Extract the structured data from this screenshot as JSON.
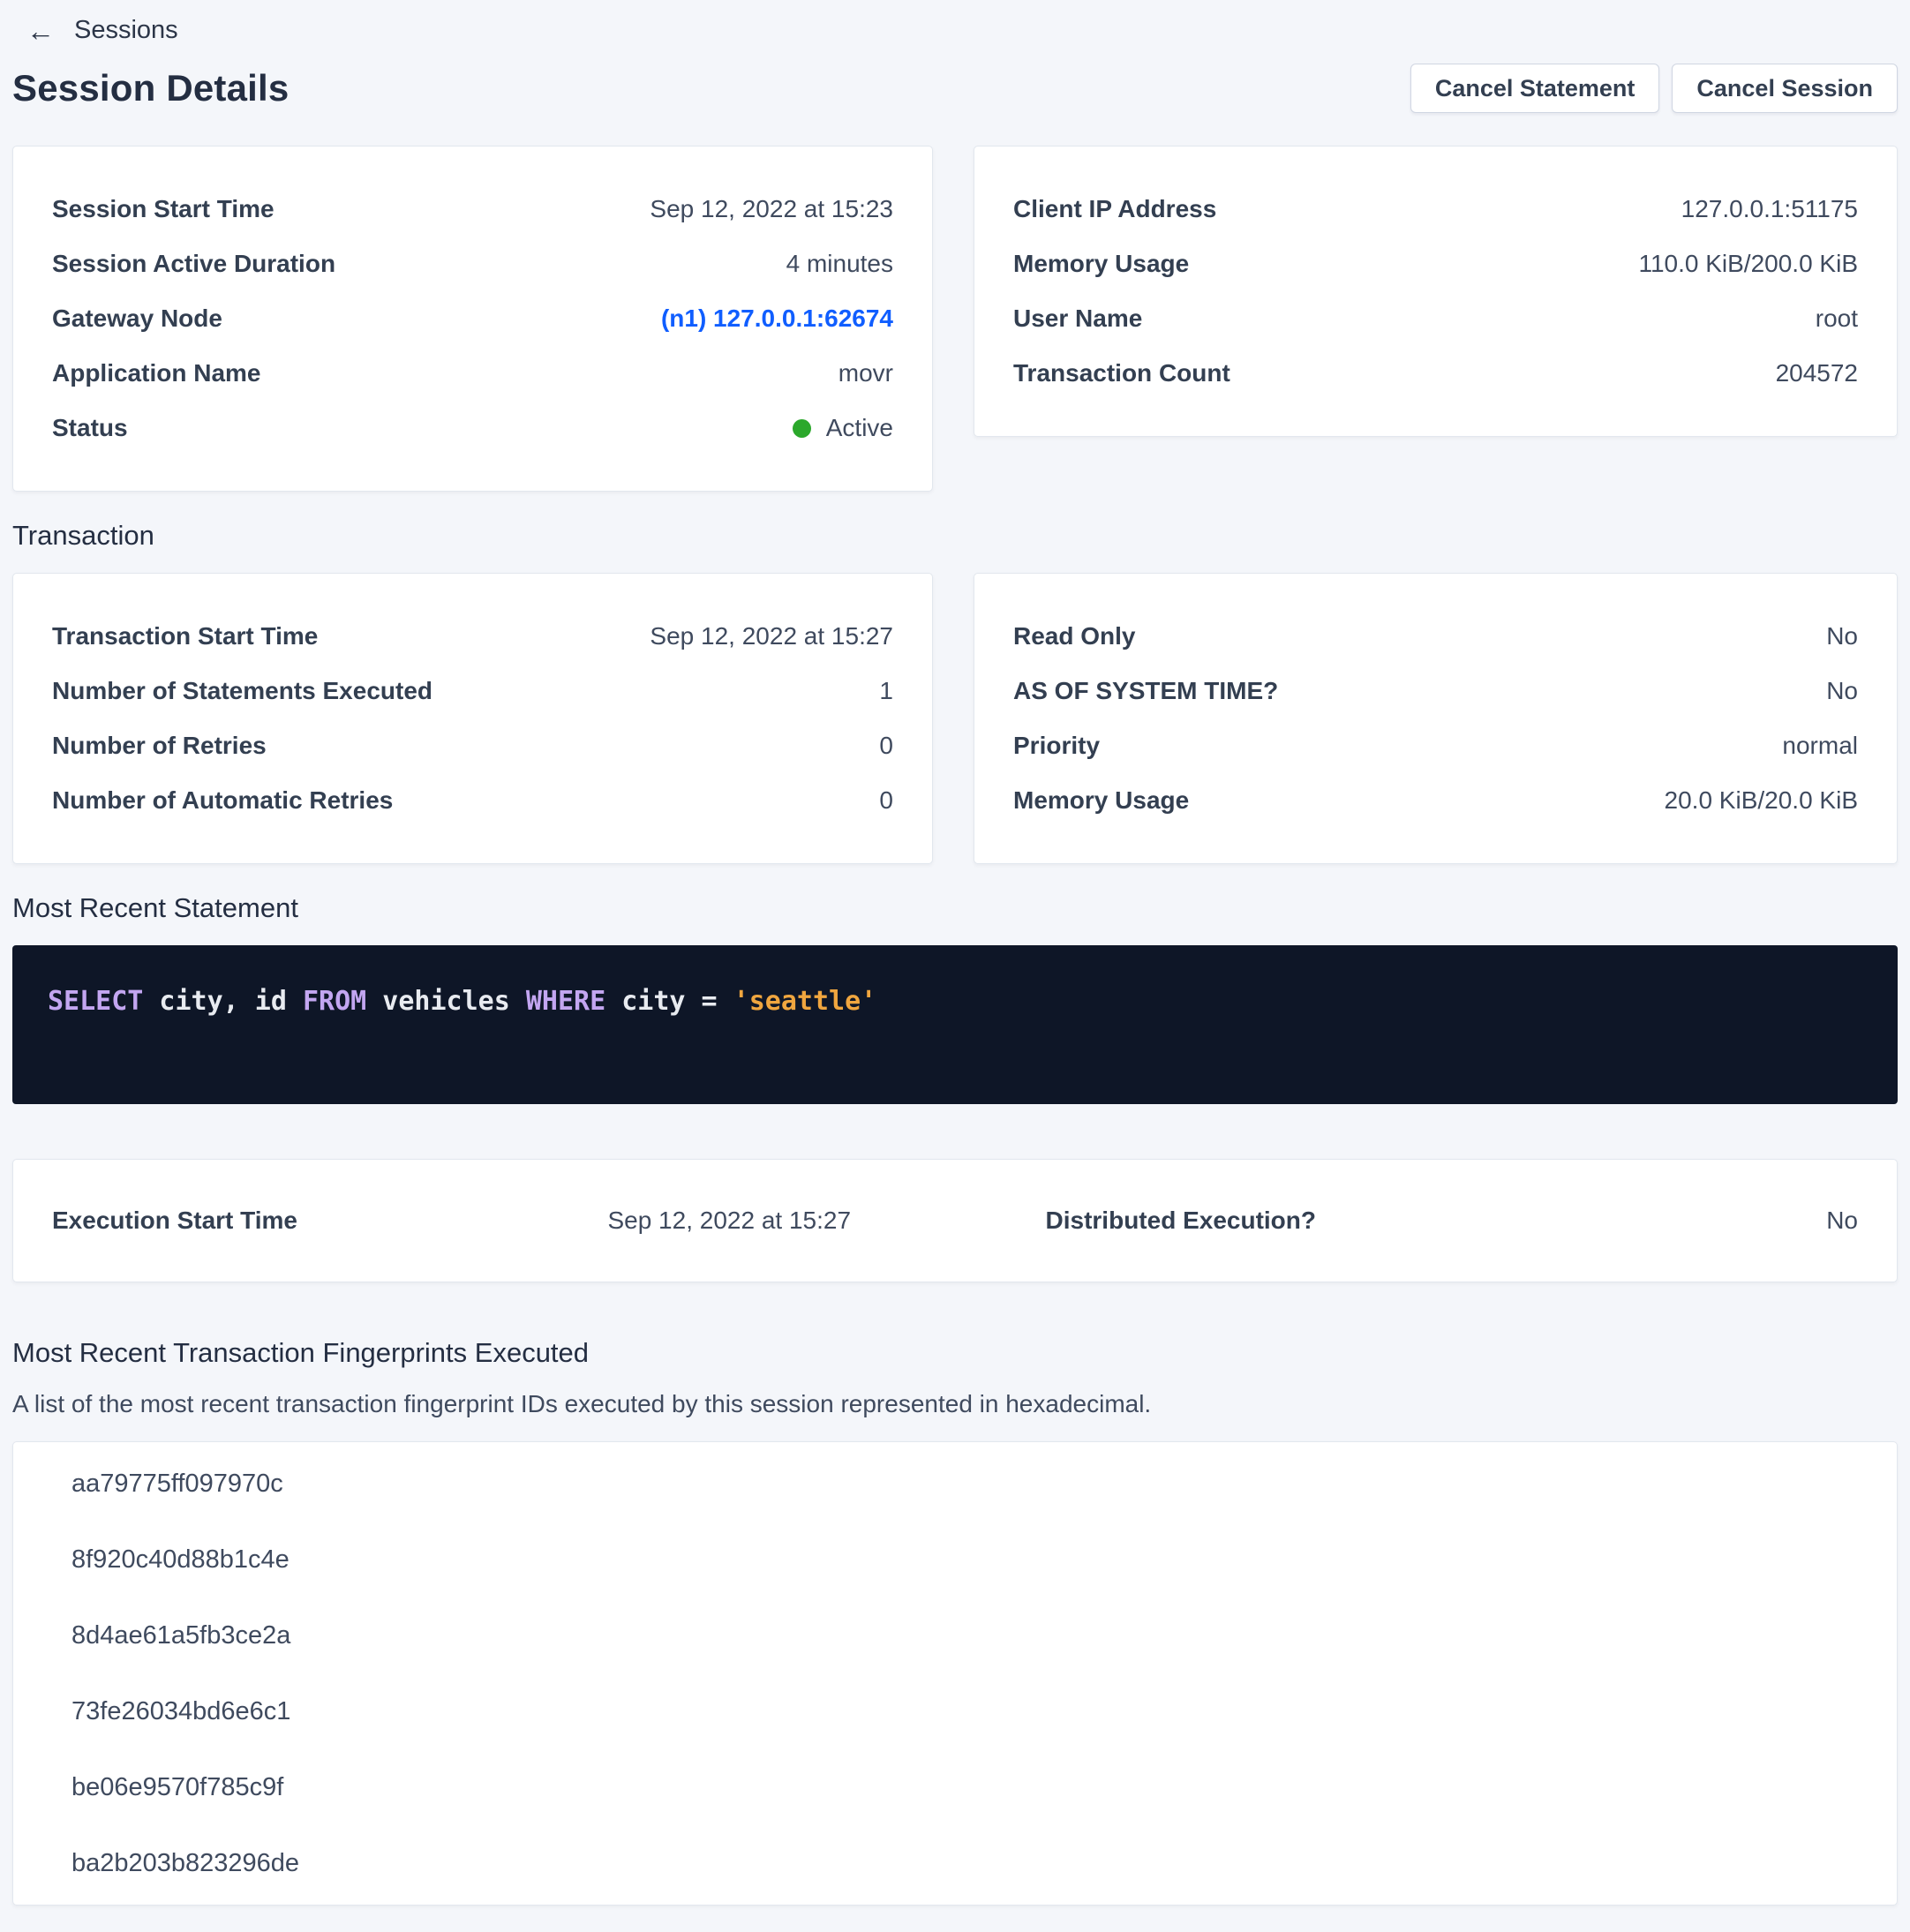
{
  "colors": {
    "page_bg": "#f4f6fa",
    "card_border": "#e2e7ee",
    "heading": "#242e42",
    "label": "#333f51",
    "value": "#3f4a5e",
    "link": "#105eff",
    "status_active_green": "#2ba82b",
    "code_bg": "#0e1627",
    "code_keyword": "#c3a6f1",
    "code_string": "#f0a63f",
    "code_plain": "#e8ebf0",
    "button_border": "#d0d6e2"
  },
  "breadcrumb": {
    "back_label": "Sessions",
    "back_arrow": "←"
  },
  "page_title": "Session Details",
  "buttons": {
    "cancel_statement": "Cancel Statement",
    "cancel_session": "Cancel Session"
  },
  "session_left": {
    "rows": [
      {
        "label": "Session Start Time",
        "value": "Sep 12, 2022 at 15:23"
      },
      {
        "label": "Session Active Duration",
        "value": "4 minutes"
      },
      {
        "label": "Gateway Node",
        "value": "(n1) 127.0.0.1:62674",
        "type": "link"
      },
      {
        "label": "Application Name",
        "value": "movr"
      },
      {
        "label": "Status",
        "value": "Active",
        "type": "status"
      }
    ]
  },
  "session_right": {
    "rows": [
      {
        "label": "Client IP Address",
        "value": "127.0.0.1:51175"
      },
      {
        "label": "Memory Usage",
        "value": "110.0 KiB/200.0 KiB"
      },
      {
        "label": "User Name",
        "value": "root"
      },
      {
        "label": "Transaction Count",
        "value": "204572"
      }
    ]
  },
  "transaction_section": {
    "heading": "Transaction",
    "left_rows": [
      {
        "label": "Transaction Start Time",
        "value": "Sep 12, 2022 at 15:27"
      },
      {
        "label": "Number of Statements Executed",
        "value": "1"
      },
      {
        "label": "Number of Retries",
        "value": "0"
      },
      {
        "label": "Number of Automatic Retries",
        "value": "0"
      }
    ],
    "right_rows": [
      {
        "label": "Read Only",
        "value": "No"
      },
      {
        "label": "AS OF SYSTEM TIME?",
        "value": "No"
      },
      {
        "label": "Priority",
        "value": "normal"
      },
      {
        "label": "Memory Usage",
        "value": "20.0 KiB/20.0 KiB"
      }
    ]
  },
  "statement_section": {
    "heading": "Most Recent Statement",
    "sql_tokens": [
      {
        "text": "SELECT",
        "kind": "kw"
      },
      {
        "text": " city, id ",
        "kind": "pl"
      },
      {
        "text": "FROM",
        "kind": "kw"
      },
      {
        "text": " vehicles ",
        "kind": "pl"
      },
      {
        "text": "WHERE",
        "kind": "kw"
      },
      {
        "text": " city = ",
        "kind": "pl"
      },
      {
        "text": "'seattle'",
        "kind": "str"
      }
    ]
  },
  "execution": {
    "start_label": "Execution Start Time",
    "start_value": "Sep 12, 2022 at 15:27",
    "distributed_label": "Distributed Execution?",
    "distributed_value": "No"
  },
  "fingerprints_section": {
    "heading": "Most Recent Transaction Fingerprints Executed",
    "description": "A list of the most recent transaction fingerprint IDs executed by this session represented in hexadecimal.",
    "items": [
      "aa79775ff097970c",
      "8f920c40d88b1c4e",
      "8d4ae61a5fb3ce2a",
      "73fe26034bd6e6c1",
      "be06e9570f785c9f",
      "ba2b203b823296de"
    ]
  }
}
